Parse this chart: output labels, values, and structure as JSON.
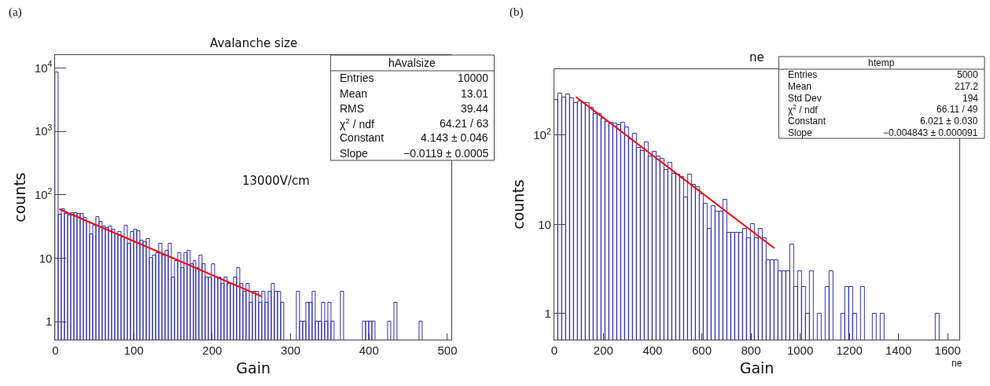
{
  "chart_data": [
    {
      "type": "histogram",
      "title": "Avalanche size",
      "xlabel": "Gain",
      "ylabel": "counts",
      "log": true,
      "bins": [
        0,
        4,
        8,
        12,
        16,
        20,
        24,
        28,
        32,
        36,
        40,
        44,
        48,
        52,
        56,
        60,
        64,
        68,
        72,
        76,
        80,
        84,
        88,
        92,
        96,
        100,
        104,
        108,
        112,
        116,
        120,
        124,
        128,
        132,
        136,
        140,
        144,
        148,
        152,
        156,
        160,
        164,
        168,
        172,
        176,
        180,
        184,
        188,
        192,
        196,
        200,
        204,
        208,
        212,
        216,
        220,
        224,
        228,
        232,
        236,
        240,
        244,
        248,
        252,
        256,
        260,
        264,
        268,
        272,
        276,
        280,
        284,
        288,
        292,
        296,
        300,
        304,
        308,
        312,
        316,
        320,
        324,
        328,
        332,
        336,
        340,
        344,
        348,
        352,
        356,
        360,
        364,
        368,
        372,
        376,
        380,
        384,
        388,
        392,
        396,
        400,
        404,
        408,
        412,
        416,
        420,
        424,
        428,
        432,
        436,
        440,
        444,
        448,
        452,
        456,
        460,
        464,
        468
      ],
      "xlim": [
        0,
        505
      ],
      "xticks": [
        0,
        100,
        200,
        300,
        400,
        500
      ],
      "ylim": [
        0.52,
        16000
      ],
      "yticks": [
        1,
        10,
        {
          "value": 100,
          "label": "10$^{2}$"
        },
        {
          "value": 1000,
          "label": "10$^{3}$"
        },
        {
          "value": 10000,
          "label": "10$^{4}$"
        }
      ],
      "series": [
        {
          "color": "#3030b0",
          "values": [
            8500,
            48,
            60,
            50,
            47,
            52,
            52,
            50,
            50,
            43,
            38,
            24,
            33,
            45,
            38,
            32,
            30,
            32,
            28,
            24,
            26,
            21,
            33,
            17,
            26,
            28,
            27,
            19,
            18,
            20,
            10,
            11,
            12,
            17,
            11,
            13,
            17,
            5,
            9,
            12,
            7,
            12,
            13,
            8,
            9,
            7,
            11,
            8,
            5,
            5,
            8,
            5,
            5,
            4,
            5,
            4,
            4,
            5,
            7,
            4,
            3,
            4,
            2,
            3,
            3,
            2,
            3,
            2,
            3,
            4,
            3,
            3,
            2,
            null,
            null,
            null,
            null,
            3,
            1,
            1,
            2,
            2,
            3,
            1,
            1,
            2,
            1,
            2,
            1,
            null,
            null,
            3,
            null,
            null,
            null,
            null,
            null,
            null,
            1,
            1,
            1,
            1,
            null,
            null,
            null,
            null,
            1,
            null,
            2,
            null,
            null,
            null,
            null,
            null,
            null,
            null,
            1
          ]
        },
        {
          "type": "line",
          "color": "#ff0000",
          "x": [
            5,
            263
          ],
          "values": [
            59.5,
            2.5
          ]
        }
      ],
      "annotations": [
        "(a)",
        "13000V/cm",
        "hAvalsize",
        "Entries",
        "10000",
        "Mean",
        "13.01",
        "RMS",
        "39.44",
        "χ$^{2}$ / ndf",
        "64.21 / 63",
        "Constant",
        "4.143 ± 0.046",
        "Slope",
        "−0.0119 ± 0.0005"
      ]
    },
    {
      "type": "histogram",
      "title": "ne",
      "xlabel": "Gain",
      "ylabel": "counts",
      "log": true,
      "bins": [
        0,
        16,
        32,
        48,
        64,
        80,
        96,
        112,
        128,
        144,
        160,
        176,
        192,
        208,
        224,
        240,
        256,
        272,
        288,
        304,
        320,
        336,
        352,
        368,
        384,
        400,
        416,
        432,
        448,
        464,
        480,
        496,
        512,
        528,
        544,
        560,
        576,
        592,
        608,
        624,
        640,
        656,
        672,
        688,
        704,
        720,
        736,
        752,
        768,
        784,
        800,
        816,
        832,
        848,
        864,
        880,
        896,
        912,
        928,
        944,
        960,
        976,
        992,
        1008,
        1024,
        1040,
        1056,
        1072,
        1088,
        1104,
        1120,
        1136,
        1152,
        1168,
        1184,
        1200,
        1216,
        1232,
        1248,
        1264,
        1280,
        1296,
        1312,
        1328,
        1344,
        1360,
        1376,
        1392,
        1408,
        1424,
        1440,
        1456,
        1472,
        1488,
        1504,
        1520,
        1536,
        1552,
        1568,
        1584,
        1600
      ],
      "xlim": [
        0,
        1648
      ],
      "xticks": [
        0,
        200,
        400,
        600,
        800,
        1000,
        1200,
        1400,
        1600
      ],
      "ylim": [
        0.51,
        550
      ],
      "yticks": [
        1,
        10,
        {
          "value": 100,
          "label": "10$^{2}$"
        }
      ],
      "series": [
        {
          "color": "#3030b0",
          "values": [
            249,
            293,
            264,
            290,
            258,
            228,
            240,
            230,
            230,
            203,
            172,
            172,
            153,
            140,
            138,
            135,
            129,
            138,
            123,
            91,
            105,
            72,
            66,
            84,
            58,
            65,
            58,
            54,
            41,
            49,
            37,
            36,
            34,
            20,
            36,
            28,
            26,
            22,
            17,
            9,
            16,
            14,
            14,
            19,
            8,
            8,
            8,
            8,
            9,
            7,
            10,
            7,
            9,
            7,
            4,
            4,
            4,
            3,
            3,
            3,
            6,
            2,
            3,
            2,
            1,
            3,
            null,
            1,
            null,
            2,
            3,
            null,
            null,
            1,
            2,
            2,
            1,
            null,
            2,
            null,
            null,
            1,
            null,
            1,
            null,
            null,
            null,
            null,
            null,
            null,
            null,
            null,
            null,
            null,
            null,
            null,
            null,
            1,
            null,
            null
          ]
        },
        {
          "type": "line",
          "color": "#ff0000",
          "x": [
            88,
            895
          ],
          "values": [
            269,
            5.4
          ]
        }
      ],
      "annotations": [
        "(b)",
        "ne",
        "htemp",
        "Entries",
        "5000",
        "Mean",
        "217.2",
        "Std Dev",
        "194",
        "χ$^{2}$ / ndf",
        "66.11 / 49",
        "Constant",
        "6.021 ± 0.030",
        "Slope",
        "−0.004843 ± 0.000091"
      ]
    }
  ]
}
